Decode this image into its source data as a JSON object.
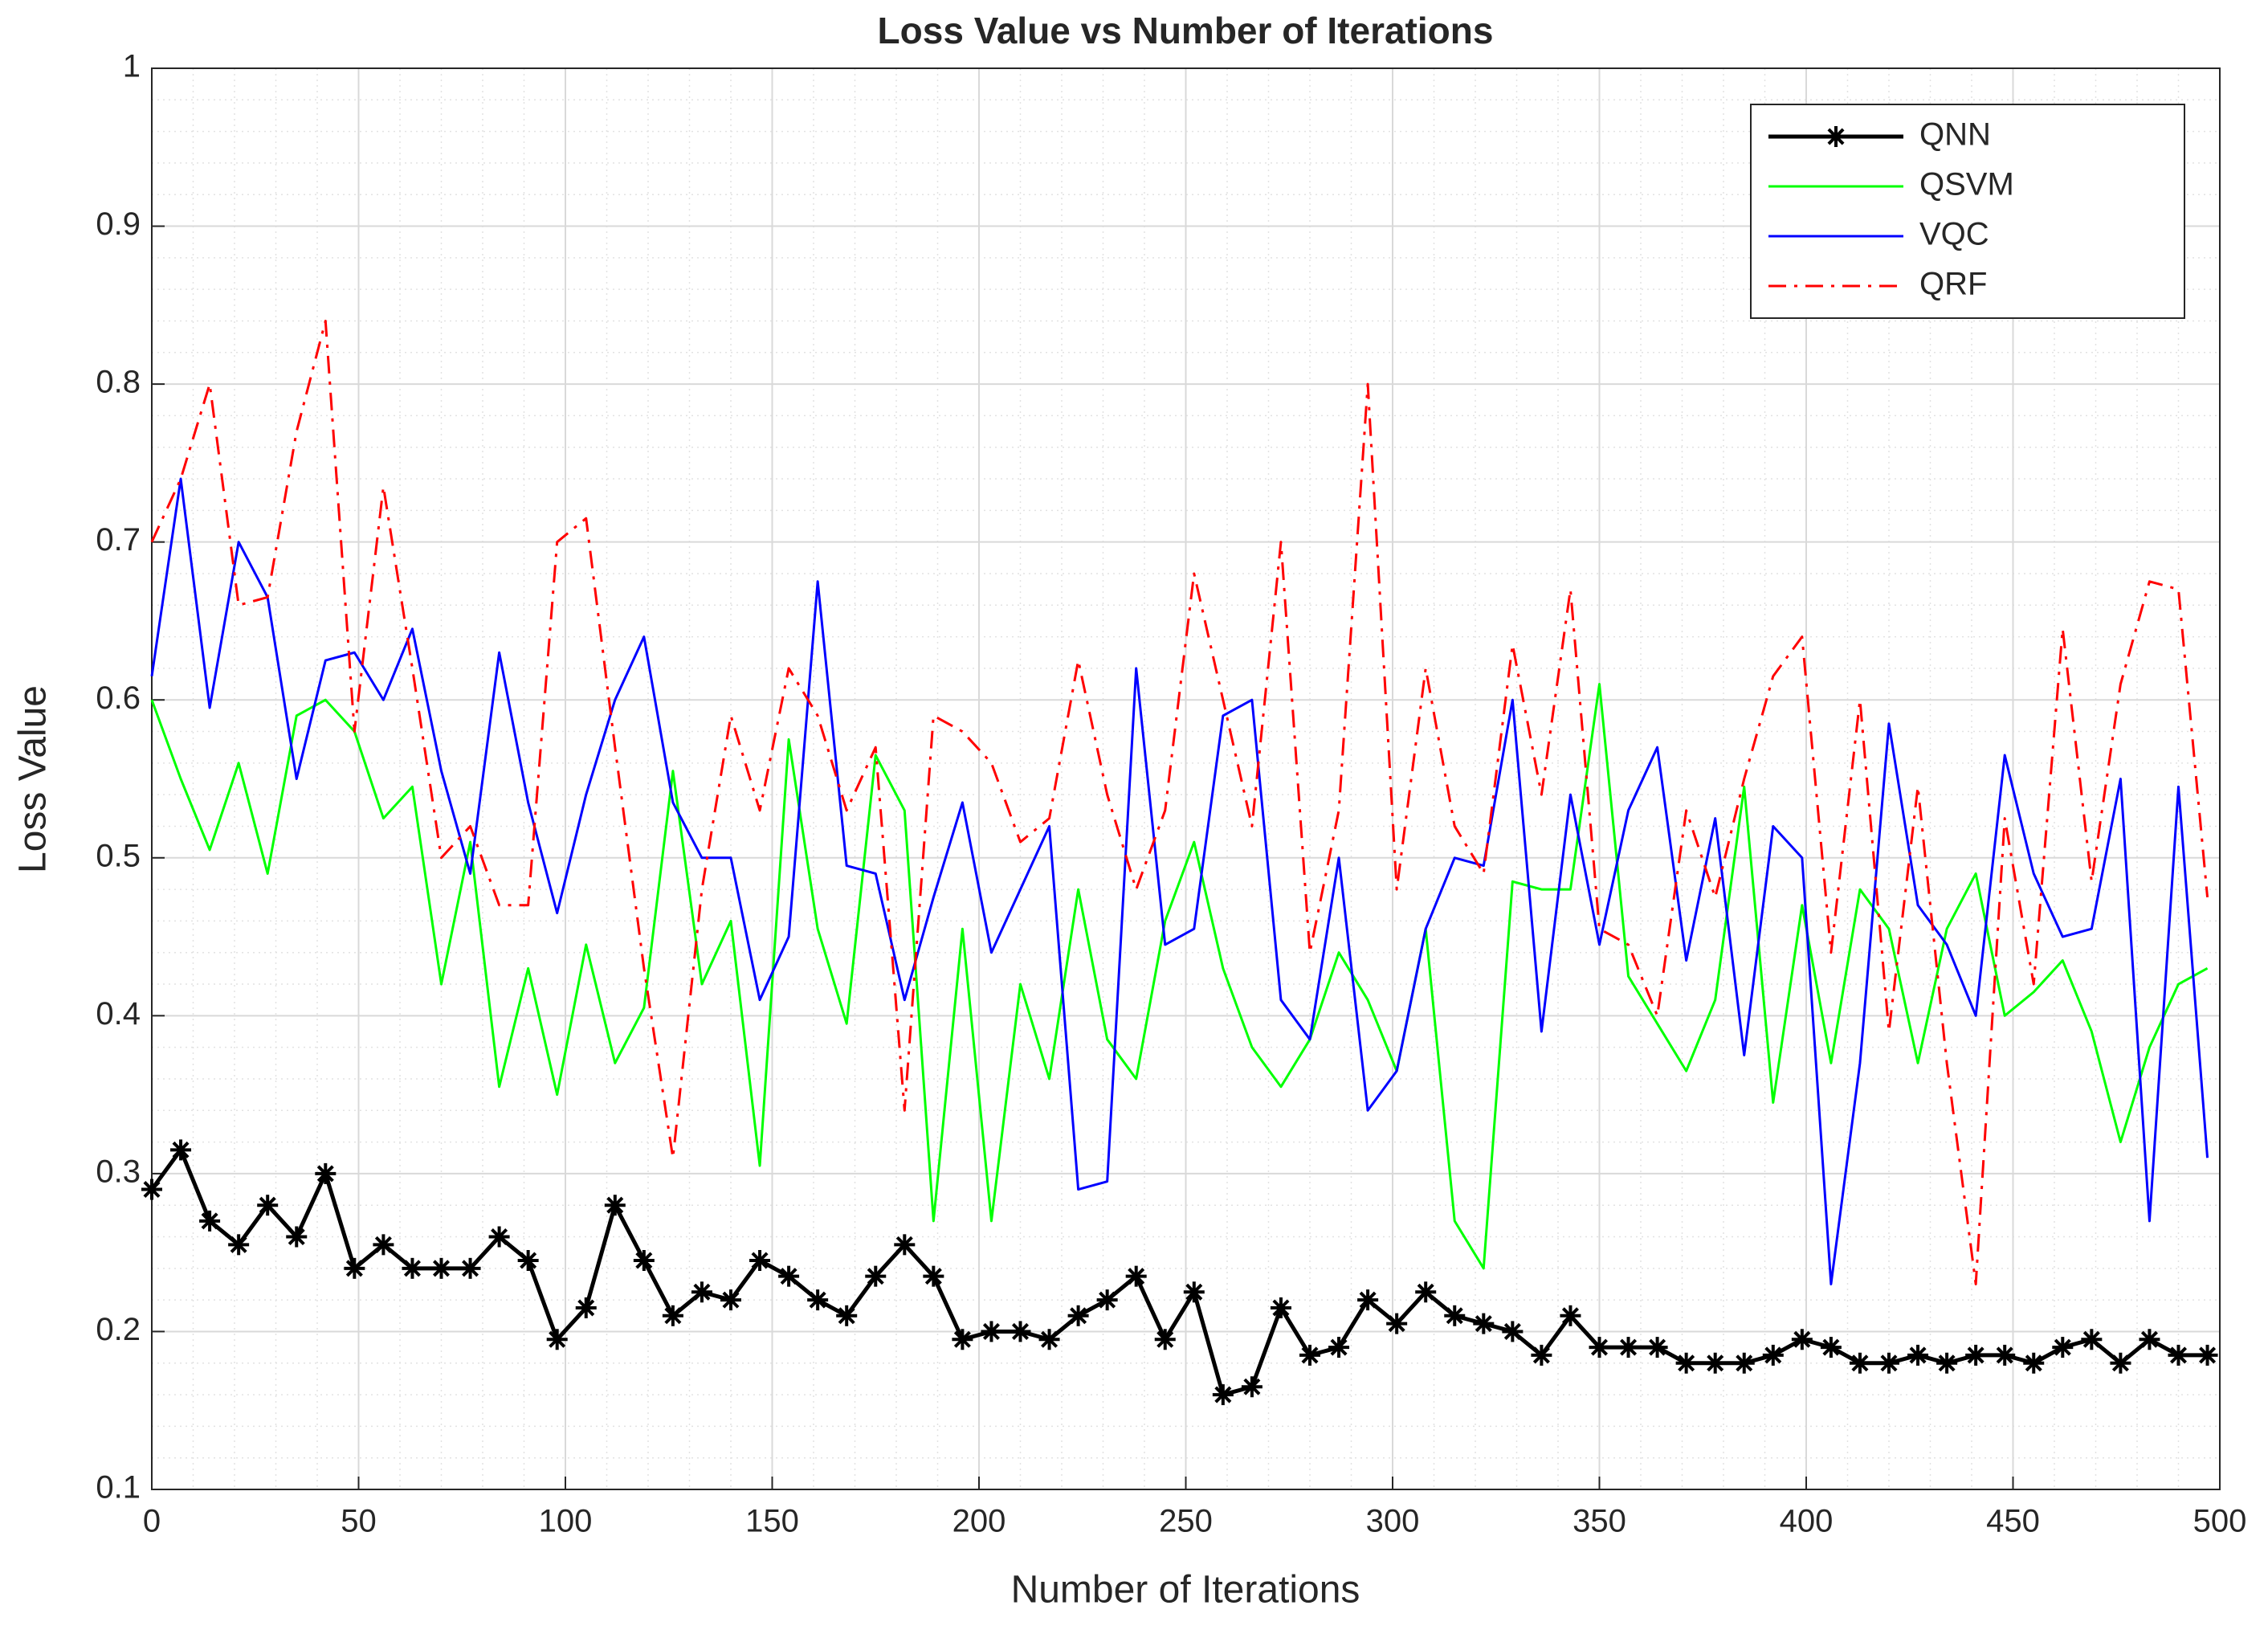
{
  "chart_data": {
    "type": "line",
    "title": "Loss Value vs Number of Iterations",
    "xlabel": "Number of Iterations",
    "ylabel": "Loss Value",
    "xlim": [
      0,
      500
    ],
    "xticks": [
      0,
      50,
      100,
      150,
      200,
      250,
      300,
      350,
      400,
      450,
      500
    ],
    "ylim": [
      0.1,
      1
    ],
    "yticks": [
      0.1,
      0.2,
      0.3,
      0.4,
      0.5,
      0.6,
      0.7,
      0.8,
      0.9,
      1
    ],
    "grid": true,
    "legend": "upper right",
    "x": [
      0,
      7,
      14,
      21,
      28,
      35,
      42,
      49,
      56,
      63,
      70,
      77,
      84,
      91,
      98,
      105,
      112,
      119,
      126,
      133,
      140,
      147,
      154,
      161,
      168,
      175,
      182,
      189,
      196,
      203,
      210,
      217,
      224,
      231,
      238,
      245,
      252,
      259,
      266,
      273,
      280,
      287,
      294,
      301,
      308,
      315,
      322,
      329,
      336,
      343,
      350,
      357,
      364,
      371,
      378,
      385,
      392,
      399,
      406,
      413,
      420,
      427,
      434,
      441,
      448,
      455,
      462,
      469,
      476,
      483,
      490,
      497
    ],
    "series": [
      {
        "name": "QNN",
        "color": "#000000",
        "marker": "asterisk",
        "values": [
          0.29,
          0.315,
          0.27,
          0.255,
          0.28,
          0.26,
          0.3,
          0.24,
          0.255,
          0.24,
          0.24,
          0.24,
          0.26,
          0.245,
          0.195,
          0.215,
          0.28,
          0.245,
          0.21,
          0.225,
          0.22,
          0.245,
          0.235,
          0.22,
          0.21,
          0.235,
          0.255,
          0.235,
          0.195,
          0.2,
          0.2,
          0.195,
          0.21,
          0.22,
          0.235,
          0.195,
          0.225,
          0.16,
          0.165,
          0.215,
          0.185,
          0.19,
          0.22,
          0.205,
          0.225,
          0.21,
          0.205,
          0.2,
          0.185,
          0.21,
          0.19,
          0.19,
          0.19,
          0.18,
          0.18,
          0.18,
          0.185,
          0.195,
          0.19,
          0.18,
          0.18,
          0.185,
          0.18,
          0.185,
          0.185,
          0.18,
          0.19,
          0.195,
          0.18,
          0.195,
          0.185,
          0.185
        ]
      },
      {
        "name": "QSVM",
        "color": "#00ff00",
        "values": [
          0.6,
          0.55,
          0.505,
          0.56,
          0.49,
          0.59,
          0.6,
          0.58,
          0.525,
          0.545,
          0.42,
          0.51,
          0.355,
          0.43,
          0.35,
          0.445,
          0.37,
          0.405,
          0.555,
          0.42,
          0.46,
          0.305,
          0.575,
          0.455,
          0.395,
          0.565,
          0.53,
          0.27,
          0.455,
          0.27,
          0.42,
          0.36,
          0.48,
          0.385,
          0.36,
          0.46,
          0.51,
          0.43,
          0.38,
          0.355,
          0.385,
          0.44,
          0.41,
          0.365,
          0.455,
          0.27,
          0.24,
          0.485,
          0.48,
          0.48,
          0.61,
          0.425,
          0.395,
          0.365,
          0.41,
          0.545,
          0.345,
          0.47,
          0.37,
          0.48,
          0.455,
          0.37,
          0.455,
          0.49,
          0.4,
          0.415,
          0.435,
          0.39,
          0.32,
          0.38,
          0.42,
          0.43
        ]
      },
      {
        "name": "VQC",
        "color": "#0000ff",
        "values": [
          0.615,
          0.74,
          0.595,
          0.7,
          0.665,
          0.55,
          0.625,
          0.63,
          0.6,
          0.645,
          0.555,
          0.49,
          0.63,
          0.535,
          0.465,
          0.54,
          0.6,
          0.64,
          0.535,
          0.5,
          0.5,
          0.41,
          0.45,
          0.675,
          0.495,
          0.49,
          0.41,
          0.475,
          0.535,
          0.44,
          0.48,
          0.52,
          0.29,
          0.295,
          0.62,
          0.445,
          0.455,
          0.59,
          0.6,
          0.41,
          0.385,
          0.5,
          0.34,
          0.365,
          0.455,
          0.5,
          0.495,
          0.6,
          0.39,
          0.54,
          0.445,
          0.53,
          0.57,
          0.435,
          0.525,
          0.375,
          0.52,
          0.5,
          0.23,
          0.37,
          0.585,
          0.47,
          0.445,
          0.4,
          0.565,
          0.49,
          0.45,
          0.455,
          0.55,
          0.27,
          0.545,
          0.31
        ]
      },
      {
        "name": "QRF",
        "color": "#ff0000",
        "linestyle": "dashdot",
        "values": [
          0.7,
          0.74,
          0.8,
          0.66,
          0.665,
          0.77,
          0.84,
          0.58,
          0.735,
          0.62,
          0.5,
          0.52,
          0.47,
          0.47,
          0.7,
          0.715,
          0.57,
          0.43,
          0.31,
          0.48,
          0.59,
          0.53,
          0.62,
          0.59,
          0.53,
          0.57,
          0.34,
          0.59,
          0.58,
          0.56,
          0.51,
          0.525,
          0.625,
          0.54,
          0.48,
          0.53,
          0.68,
          0.6,
          0.52,
          0.7,
          0.44,
          0.53,
          0.8,
          0.48,
          0.62,
          0.52,
          0.49,
          0.635,
          0.54,
          0.67,
          0.455,
          0.445,
          0.4,
          0.53,
          0.475,
          0.55,
          0.615,
          0.64,
          0.44,
          0.6,
          0.39,
          0.545,
          0.37,
          0.23,
          0.525,
          0.42,
          0.645,
          0.485,
          0.61,
          0.675,
          0.67,
          0.475
        ]
      }
    ]
  }
}
